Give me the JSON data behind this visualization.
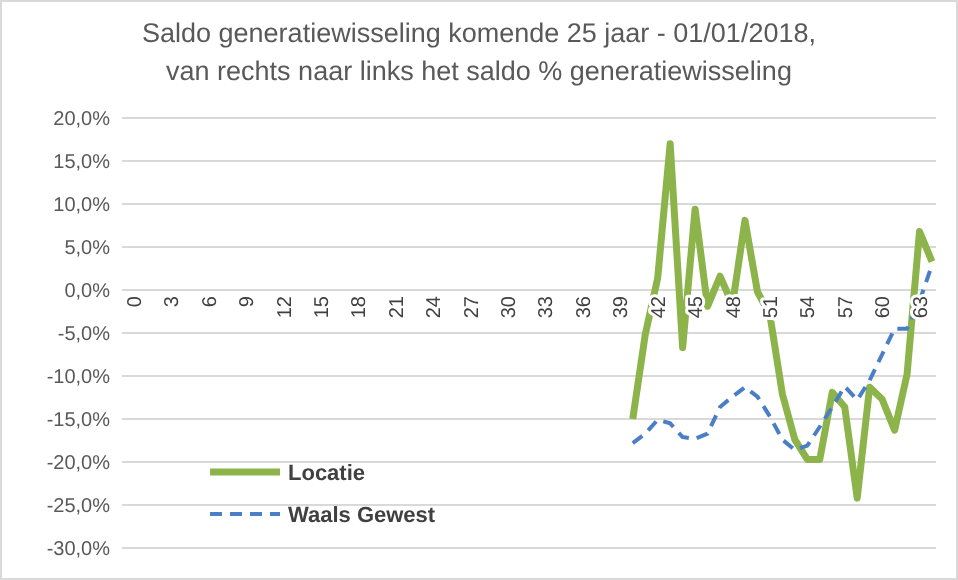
{
  "chart_data": {
    "type": "line",
    "title": "Saldo generatiewisseling komende 25 jaar - 01/01/2018,\nvan rechts naar links  het saldo % generatiewisseling",
    "categories": [
      "0",
      null,
      null,
      "3",
      null,
      null,
      "6",
      null,
      null,
      "9",
      null,
      null,
      "12",
      null,
      null,
      "15",
      null,
      null,
      "18",
      null,
      null,
      "21",
      null,
      null,
      "24",
      null,
      null,
      "27",
      null,
      null,
      "30",
      null,
      null,
      "33",
      null,
      null,
      "36",
      null,
      null,
      "39",
      null,
      null,
      "42",
      null,
      null,
      "45",
      null,
      null,
      "48",
      null,
      null,
      "51",
      null,
      null,
      "54",
      null,
      null,
      "57",
      null,
      null,
      "60",
      null,
      null,
      "63",
      null
    ],
    "series": [
      {
        "name": "Locatie",
        "color": "#8cb44a",
        "line_style": "solid",
        "values": [
          null,
          null,
          null,
          null,
          null,
          null,
          null,
          null,
          null,
          null,
          null,
          null,
          null,
          null,
          null,
          null,
          null,
          null,
          null,
          null,
          null,
          null,
          null,
          null,
          null,
          null,
          null,
          null,
          null,
          null,
          null,
          null,
          null,
          null,
          null,
          null,
          null,
          null,
          null,
          null,
          -15,
          -5.2,
          1.4,
          17,
          -6.7,
          9.4,
          -1.9,
          1.6,
          -1.7,
          8.1,
          -0.2,
          -2.9,
          -12.1,
          -17.4,
          -19.7,
          -19.7,
          -11.9,
          -13.6,
          -24.2,
          -11.3,
          -12.7,
          -16.3,
          -9.8,
          6.8,
          3.3
        ]
      },
      {
        "name": "Waals Gewest",
        "color": "#4a7fc8",
        "line_style": "dashed",
        "values": [
          null,
          null,
          null,
          null,
          null,
          null,
          null,
          null,
          null,
          null,
          null,
          null,
          null,
          null,
          null,
          null,
          null,
          null,
          null,
          null,
          null,
          null,
          null,
          null,
          null,
          null,
          null,
          null,
          null,
          null,
          null,
          null,
          null,
          null,
          null,
          null,
          null,
          null,
          null,
          null,
          -17.8,
          -16.7,
          -15.1,
          -15.5,
          -17.1,
          -17.3,
          -16.7,
          -13.6,
          -12.4,
          -11.3,
          -12.4,
          -14.7,
          -17.4,
          -18.6,
          -18.1,
          -15.9,
          -13.6,
          -11.2,
          -12.8,
          -10.5,
          -7.5,
          -4.5,
          -4.5,
          -1.3,
          2.9
        ]
      }
    ],
    "ylim": [
      -30,
      20
    ],
    "yticks": [
      {
        "value": 20,
        "label": "20,0%"
      },
      {
        "value": 15,
        "label": "15,0%"
      },
      {
        "value": 10,
        "label": "10,0%"
      },
      {
        "value": 5,
        "label": "5,0%"
      },
      {
        "value": 0,
        "label": "0,0%"
      },
      {
        "value": -5,
        "label": "-5,0%"
      },
      {
        "value": -10,
        "label": "-10,0%"
      },
      {
        "value": -15,
        "label": "-15,0%"
      },
      {
        "value": -20,
        "label": "-20,0%"
      },
      {
        "value": -25,
        "label": "-25,0%"
      },
      {
        "value": -30,
        "label": "-30,0%"
      }
    ],
    "grid": "y",
    "legend": "bottom left"
  }
}
